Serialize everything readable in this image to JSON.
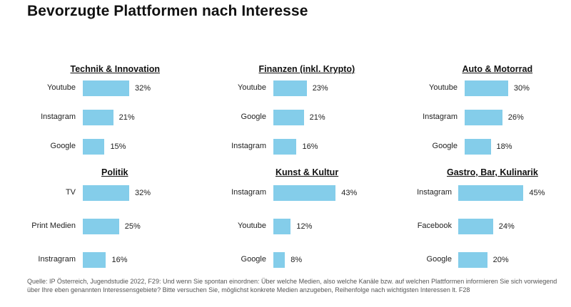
{
  "page": {
    "title": "Bevorzugte Plattformen nach Interesse",
    "source": "Quelle: IP Österreich, Jugendstudie 2022, F29: Und wenn Sie spontan einordnen: Über welche Medien, also welche Kanäle bzw. auf welchen Plattformen informieren Sie sich vorwiegend über Ihre eben genannten Interessensgebiete? Bitte versuchen Sie, möglichst konkrete Medien anzugeben, Reihenfolge nach wichtigsten Interessen lt. F28"
  },
  "colors": {
    "bar": "#84cdea"
  },
  "chart_data": [
    {
      "type": "bar",
      "orientation": "horizontal",
      "title": "Technik & Innovation",
      "categories": [
        "Youtube",
        "Instagram",
        "Google"
      ],
      "values": [
        32,
        21,
        15
      ],
      "labels": [
        "32%",
        "21%",
        "15%"
      ],
      "unit": "%"
    },
    {
      "type": "bar",
      "orientation": "horizontal",
      "title": "Finanzen (inkl. Krypto)",
      "categories": [
        "Youtube",
        "Google",
        "Instagram"
      ],
      "values": [
        23,
        21,
        16
      ],
      "labels": [
        "23%",
        "21%",
        "16%"
      ],
      "unit": "%"
    },
    {
      "type": "bar",
      "orientation": "horizontal",
      "title": "Auto & Motorrad",
      "categories": [
        "Youtube",
        "Instagram",
        "Google"
      ],
      "values": [
        30,
        26,
        18
      ],
      "labels": [
        "30%",
        "26%",
        "18%"
      ],
      "unit": "%"
    },
    {
      "type": "bar",
      "orientation": "horizontal",
      "title": "Politik",
      "categories": [
        "TV",
        "Print Medien",
        "Instragram"
      ],
      "values": [
        32,
        25,
        16
      ],
      "labels": [
        "32%",
        "25%",
        "16%"
      ],
      "unit": "%"
    },
    {
      "type": "bar",
      "orientation": "horizontal",
      "title": "Kunst & Kultur",
      "categories": [
        "Instagram",
        "Youtube",
        "Google"
      ],
      "values": [
        43,
        12,
        8
      ],
      "labels": [
        "43%",
        "12%",
        "8%"
      ],
      "unit": "%"
    },
    {
      "type": "bar",
      "orientation": "horizontal",
      "title": "Gastro, Bar, Kulinarik",
      "categories": [
        "Instagram",
        "Facebook",
        "Google"
      ],
      "values": [
        45,
        24,
        20
      ],
      "labels": [
        "45%",
        "24%",
        "20%"
      ],
      "unit": "%"
    }
  ]
}
